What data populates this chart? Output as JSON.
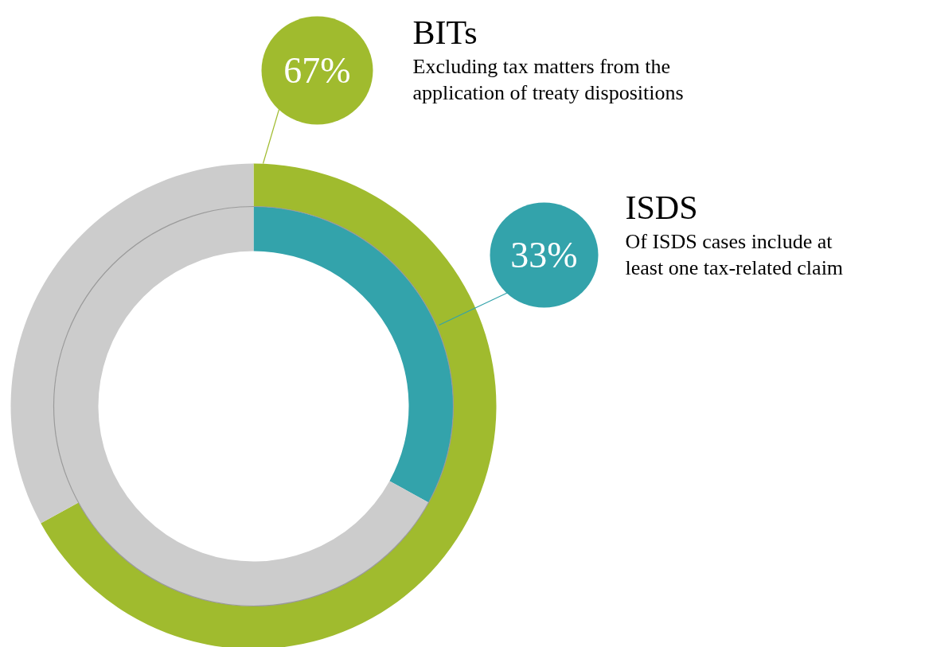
{
  "chart_data": {
    "type": "donut",
    "categories": [
      null,
      null
    ],
    "series": [
      {
        "name": "BITs",
        "colors": [
          "#a0bb2e",
          "#cccccc"
        ],
        "values": [
          67,
          33
        ],
        "value_labels": [
          "67%",
          null
        ]
      },
      {
        "name": "ISDS",
        "colors": [
          "#33a3ab",
          "#cccccc"
        ],
        "values": [
          33,
          67
        ],
        "value_labels": [
          "33%",
          null
        ]
      }
    ],
    "annotations": [
      "Excluding tax matters from the\napplication of treaty dispositions",
      "Of ISDS cases include at\nleast one tax-related claim"
    ]
  }
}
